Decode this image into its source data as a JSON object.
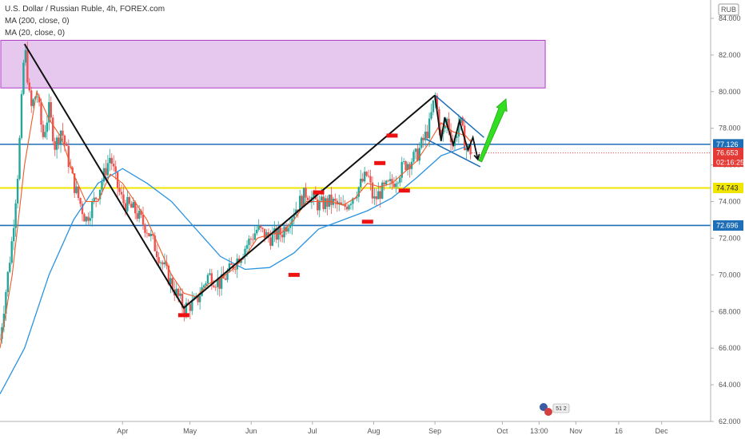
{
  "legend": {
    "symbol_line": "U.S. Dollar / Russian Ruble, 4h, FOREX.com",
    "ma200_line": "MA (200, close, 0)",
    "ma20_line": "MA (20, close, 0)"
  },
  "currency_label": "RUB",
  "price_tags": {
    "resistance": "77.126",
    "last_price": "76.653",
    "countdown": "02:16:25",
    "mid_level": "74.743",
    "support": "72.696"
  },
  "colors": {
    "zone_fill": "#e6c8ee",
    "zone_stroke": "#b03cc8",
    "level_blue": "#1e6fb8",
    "level_yellow": "#f0e600",
    "ma200": "#2b93e0",
    "ma20": "#f05a28",
    "candle_up": "#26a69a",
    "candle_down": "#ef5350",
    "marker": "#ee1111",
    "arrow": "#33dd22",
    "tag_red": "#e53935",
    "tag_blue": "#1e6fb8",
    "tag_yellow": "#f0e600"
  },
  "chart_data": {
    "type": "candlestick",
    "title": "U.S. Dollar / Russian Ruble, 4h, FOREX.com",
    "ylim": [
      62,
      85
    ],
    "y_ticks": [
      84,
      82,
      80,
      78,
      76,
      74,
      72,
      70,
      68,
      66,
      64,
      62
    ],
    "x_ticks": [
      "Apr",
      "May",
      "Jun",
      "Jul",
      "Aug",
      "Sep",
      "Oct",
      "13:00",
      "Nov",
      "16",
      "Dec"
    ],
    "x_tick_pos": [
      10,
      15.5,
      20.5,
      25.5,
      30.5,
      35.5,
      41,
      44,
      47,
      50.5,
      54
    ],
    "x_range": [
      0,
      58
    ],
    "price_path": [
      [
        0,
        66.5
      ],
      [
        1,
        72
      ],
      [
        1.5,
        76
      ],
      [
        2,
        82.6
      ],
      [
        2.5,
        79
      ],
      [
        3,
        80
      ],
      [
        3.5,
        77.5
      ],
      [
        4,
        79
      ],
      [
        4.5,
        77
      ],
      [
        5,
        78
      ],
      [
        6,
        75
      ],
      [
        7,
        73
      ],
      [
        8,
        74.5
      ],
      [
        9,
        76.5
      ],
      [
        9.5,
        75
      ],
      [
        10,
        74
      ],
      [
        11,
        73.5
      ],
      [
        12,
        72.5
      ],
      [
        13,
        71
      ],
      [
        14,
        69.5
      ],
      [
        15,
        68.2
      ],
      [
        16,
        68.5
      ],
      [
        17,
        70
      ],
      [
        18,
        69.5
      ],
      [
        19,
        70.5
      ],
      [
        20,
        71.5
      ],
      [
        21,
        72.5
      ],
      [
        22,
        72
      ],
      [
        23,
        72.3
      ],
      [
        24,
        73.5
      ],
      [
        25,
        74.5
      ],
      [
        26,
        73.8
      ],
      [
        27,
        74
      ],
      [
        28,
        73.6
      ],
      [
        29,
        74.5
      ],
      [
        30,
        75.5
      ],
      [
        30.5,
        74
      ],
      [
        31,
        74.5
      ],
      [
        32,
        75
      ],
      [
        33,
        76
      ],
      [
        34,
        76.5
      ],
      [
        35,
        78
      ],
      [
        35.5,
        79.8
      ],
      [
        36,
        77.5
      ],
      [
        36.5,
        78.5
      ],
      [
        37,
        77
      ],
      [
        37.5,
        78.5
      ],
      [
        38,
        77
      ],
      [
        38.5,
        76.7
      ]
    ],
    "ma200": [
      [
        0,
        63.5
      ],
      [
        2,
        66
      ],
      [
        4,
        70
      ],
      [
        6,
        73
      ],
      [
        8,
        75
      ],
      [
        10,
        75.8
      ],
      [
        12,
        75
      ],
      [
        14,
        74
      ],
      [
        16,
        72.5
      ],
      [
        18,
        71
      ],
      [
        20,
        70.3
      ],
      [
        22,
        70.4
      ],
      [
        24,
        71.2
      ],
      [
        26,
        72.5
      ],
      [
        28,
        73
      ],
      [
        30,
        73.5
      ],
      [
        32,
        74.2
      ],
      [
        34,
        75.3
      ],
      [
        36,
        76.5
      ],
      [
        38,
        77
      ]
    ],
    "ma20": [
      [
        0,
        66
      ],
      [
        1,
        70
      ],
      [
        2,
        76
      ],
      [
        3,
        80
      ],
      [
        4,
        78.5
      ],
      [
        5,
        77.5
      ],
      [
        6,
        75.5
      ],
      [
        7,
        74
      ],
      [
        8,
        74
      ],
      [
        9,
        75.5
      ],
      [
        10,
        75
      ],
      [
        11,
        74
      ],
      [
        12,
        73
      ],
      [
        13,
        71.5
      ],
      [
        14,
        70
      ],
      [
        15,
        69
      ],
      [
        16,
        68.8
      ],
      [
        17,
        69.5
      ],
      [
        18,
        69.8
      ],
      [
        19,
        70.3
      ],
      [
        20,
        71
      ],
      [
        21,
        72
      ],
      [
        22,
        72.2
      ],
      [
        23,
        72.3
      ],
      [
        24,
        73
      ],
      [
        25,
        74
      ],
      [
        26,
        74
      ],
      [
        27,
        74
      ],
      [
        28,
        73.8
      ],
      [
        29,
        74.2
      ],
      [
        30,
        75
      ],
      [
        31,
        74.8
      ],
      [
        32,
        75
      ],
      [
        33,
        75.6
      ],
      [
        34,
        76.2
      ],
      [
        35,
        77.2
      ],
      [
        36,
        78.3
      ],
      [
        37,
        77.8
      ],
      [
        38,
        77.6
      ],
      [
        38.5,
        77.2
      ]
    ],
    "zone": [
      80.2,
      82.8
    ],
    "levels": [
      77.126,
      74.743,
      72.696
    ],
    "trend_lines": [
      [
        [
          2,
          82.6
        ],
        [
          15,
          68.2
        ],
        [
          35.5,
          79.8
        ]
      ]
    ],
    "zigzag": [
      [
        35.5,
        79.8
      ],
      [
        36,
        77.3
      ],
      [
        36.3,
        78.6
      ],
      [
        37,
        77.1
      ],
      [
        37.5,
        78.4
      ],
      [
        38.2,
        76.8
      ],
      [
        38.6,
        77.5
      ],
      [
        39,
        76.3
      ]
    ],
    "channel": [
      [
        [
          35.5,
          79.8
        ],
        [
          39.5,
          77.5
        ]
      ],
      [
        [
          34.8,
          77.4
        ],
        [
          39.2,
          75.9
        ]
      ]
    ],
    "forecast_arrow": [
      [
        39.2,
        76.2
      ],
      [
        41.3,
        79.6
      ]
    ],
    "markers": [
      [
        15,
        67.8
      ],
      [
        24,
        70
      ],
      [
        26,
        74.5
      ],
      [
        30,
        72.9
      ],
      [
        31,
        76.1
      ],
      [
        32,
        77.6
      ],
      [
        33,
        74.6
      ]
    ]
  }
}
